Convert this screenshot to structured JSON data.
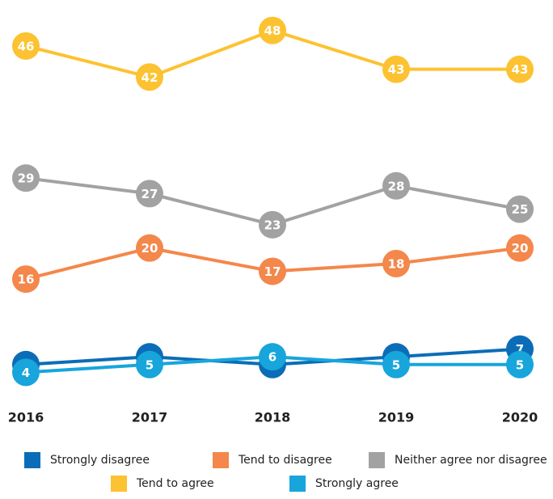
{
  "chart_data": {
    "type": "line",
    "categories": [
      "2016",
      "2017",
      "2018",
      "2019",
      "2020"
    ],
    "series": [
      {
        "name": "Tend to agree",
        "color": "#fdc231",
        "values": [
          46,
          42,
          48,
          43,
          43
        ]
      },
      {
        "name": "Neither agree nor disagree",
        "color": "#a2a2a2",
        "values": [
          29,
          27,
          23,
          28,
          25
        ]
      },
      {
        "name": "Tend to disagree",
        "color": "#f4874b",
        "values": [
          16,
          20,
          17,
          18,
          20
        ]
      },
      {
        "name": "Strongly disagree",
        "color": "#0b6db7",
        "values": [
          5,
          6,
          5,
          6,
          7
        ]
      },
      {
        "name": "Strongly agree",
        "color": "#17a5dc",
        "values": [
          4,
          5,
          6,
          5,
          5
        ]
      }
    ],
    "ylim": [
      3,
      49
    ]
  }
}
